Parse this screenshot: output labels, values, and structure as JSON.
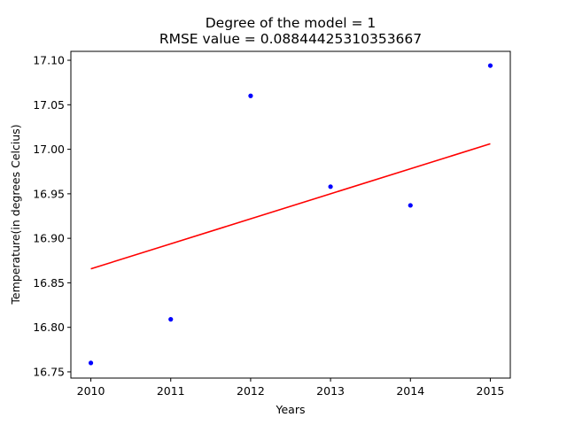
{
  "chart_data": {
    "type": "scatter",
    "title_line1": "Degree of the model = 1",
    "title_line2": "RMSE value = 0.08844425310353667",
    "xlabel": "Years",
    "ylabel": "Temperature(in degrees Celcius)",
    "xlim": [
      2009.75,
      2015.25
    ],
    "ylim": [
      16.743,
      17.11
    ],
    "x_ticks": [
      2010,
      2011,
      2012,
      2013,
      2014,
      2015
    ],
    "x_tick_labels": [
      "2010",
      "2011",
      "2012",
      "2013",
      "2014",
      "2015"
    ],
    "y_ticks": [
      16.75,
      16.8,
      16.85,
      16.9,
      16.95,
      17.0,
      17.05,
      17.1
    ],
    "y_tick_labels": [
      "16.75",
      "16.80",
      "16.85",
      "16.90",
      "16.95",
      "17.00",
      "17.05",
      "17.10"
    ],
    "grid": false,
    "series": [
      {
        "kind": "points",
        "color": "#0000ff",
        "x": [
          2010,
          2011,
          2012,
          2013,
          2014,
          2015
        ],
        "y": [
          16.76,
          16.809,
          17.06,
          16.958,
          16.937,
          17.094
        ]
      },
      {
        "kind": "fit-line",
        "color": "#ff0000",
        "x": [
          2010,
          2011,
          2012,
          2013,
          2014,
          2015
        ],
        "y": [
          16.8657,
          16.8938,
          16.9219,
          16.95,
          16.9781,
          17.0062
        ]
      }
    ]
  }
}
